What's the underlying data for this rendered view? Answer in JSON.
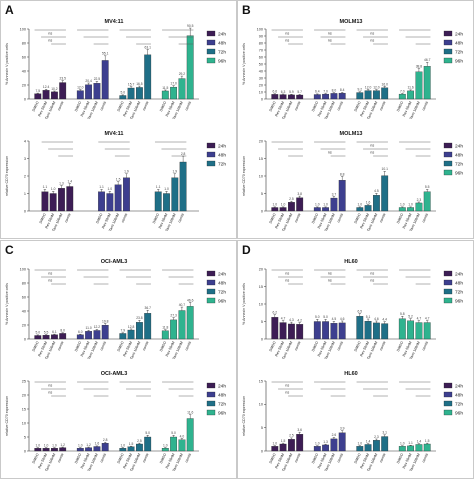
{
  "colors": {
    "h24": "#3d1d55",
    "h48": "#3d3f8f",
    "h72": "#1f6f87",
    "h96": "#2fb38f",
    "line": "#555555"
  },
  "groups": [
    "DMSO",
    "Rev 50nM",
    "Tami 100nM",
    "combi"
  ],
  "panels": [
    {
      "letter": "A",
      "dims": [
        0,
        0,
        237,
        239
      ]
    },
    {
      "letter": "B",
      "dims": [
        237,
        0,
        237,
        239
      ]
    },
    {
      "letter": "C",
      "dims": [
        0,
        239,
        237,
        240
      ]
    },
    {
      "letter": "D",
      "dims": [
        237,
        239,
        237,
        240
      ]
    }
  ],
  "chart_data": [
    {
      "panel": "A",
      "type": "bar",
      "title": "MV4:11",
      "ylabel": "% Annexin V positive cells",
      "ylim": [
        0,
        100
      ],
      "yticks": [
        0,
        20,
        40,
        60,
        80,
        100
      ],
      "categories": [
        "DMSO",
        "Rev 50nM",
        "Tami 100nM",
        "combi"
      ],
      "series": [
        {
          "name": "24h",
          "values": [
            7.5,
            12.4,
            10.2,
            23.5
          ],
          "labels": [
            "7.5",
            "12.4",
            "10.2",
            "23.5"
          ]
        },
        {
          "name": "48h",
          "values": [
            12.0,
            20.4,
            22.5,
            55.1
          ],
          "labels": [
            "12.0",
            "20.4",
            "22.5",
            "55.1"
          ]
        },
        {
          "name": "72h",
          "values": [
            5.0,
            15.7,
            16.5,
            63.1
          ],
          "labels": [
            "5.0",
            "15.7",
            "16.5",
            "63.1"
          ]
        },
        {
          "name": "96h",
          "values": [
            11.5,
            17.0,
            29.2,
            90.5
          ],
          "labels": [
            "11.5",
            "17.0",
            "29.2",
            "90.5"
          ]
        }
      ],
      "sig": [
        "ns",
        "ns",
        "",
        "",
        "",
        ""
      ]
    },
    {
      "panel": "B",
      "type": "bar",
      "title": "MOLM13",
      "ylabel": "% Annexin V positive cells",
      "ylim": [
        0,
        100
      ],
      "yticks": [
        0,
        10,
        20,
        30,
        40,
        50,
        60,
        70,
        80,
        90,
        100
      ],
      "categories": [
        "DMSO",
        "Rev 50nM",
        "Tami 100nM",
        "combi"
      ],
      "series": [
        {
          "name": "24h",
          "values": [
            6.6,
            6.3,
            5.9,
            5.7
          ],
          "labels": [
            "6.6",
            "6.3",
            "5.9",
            "5.7"
          ]
        },
        {
          "name": "48h",
          "values": [
            6.4,
            7.0,
            8.0,
            8.4
          ],
          "labels": [
            "6.4",
            "7.0",
            "8.0",
            "8.4"
          ]
        },
        {
          "name": "72h",
          "values": [
            9.2,
            12.0,
            12.0,
            16.0
          ],
          "labels": [
            "9.2",
            "12.0",
            "12.0",
            "16.0"
          ]
        },
        {
          "name": "96h",
          "values": [
            7.0,
            11.6,
            38.8,
            46.7
          ],
          "labels": [
            "7.0",
            "11.6",
            "38.8",
            "46.7"
          ]
        }
      ],
      "sig": [
        "ns",
        "ns",
        "ns",
        "ns",
        "ns",
        "ns"
      ]
    },
    {
      "panel": "A",
      "type": "bar",
      "title": "MV4:11",
      "ylabel": "relative CD70 expression",
      "ylim": [
        0,
        4
      ],
      "yticks": [
        0,
        1,
        2,
        3,
        4
      ],
      "categories": [
        "DMSO",
        "Rev 50nM",
        "Tami 100nM",
        "combi"
      ],
      "series": [
        {
          "name": "24h",
          "values": [
            1.1,
            1.0,
            1.3,
            1.4
          ],
          "labels": [
            "1.1",
            "1.0",
            "1.3",
            "1.4"
          ]
        },
        {
          "name": "48h",
          "values": [
            1.1,
            1.0,
            1.5,
            1.9
          ],
          "labels": [
            "1.1",
            "1.0",
            "1.5",
            "1.9"
          ]
        },
        {
          "name": "72h",
          "values": [
            1.1,
            1.0,
            1.9,
            2.8
          ],
          "labels": [
            "1.1",
            "1.0",
            "1.9",
            "2.8"
          ]
        }
      ],
      "sig": [
        "",
        "",
        "",
        ""
      ]
    },
    {
      "panel": "B",
      "type": "bar",
      "title": "MOLM13",
      "ylabel": "relative CD70 expression",
      "ylim": [
        0,
        20
      ],
      "yticks": [
        0,
        5,
        10,
        15,
        20
      ],
      "categories": [
        "DMSO",
        "Rev 50nM",
        "Tami 100nM",
        "combi"
      ],
      "series": [
        {
          "name": "24h",
          "values": [
            1.0,
            1.0,
            2.5,
            3.8
          ],
          "labels": [
            "1.0",
            "1.0",
            "2.5",
            "3.8"
          ]
        },
        {
          "name": "48h",
          "values": [
            1.0,
            1.0,
            3.7,
            8.8
          ],
          "labels": [
            "1.0",
            "1.0",
            "3.7",
            "8.8"
          ]
        },
        {
          "name": "72h",
          "values": [
            1.0,
            1.6,
            4.5,
            10.1
          ],
          "labels": [
            "1.0",
            "1.6",
            "4.5",
            "10.1"
          ]
        },
        {
          "name": "96h",
          "values": [
            1.0,
            1.0,
            2.3,
            5.5
          ],
          "labels": [
            "1.0",
            "1.0",
            "2.3",
            "5.5"
          ]
        }
      ],
      "sig": [
        "",
        "",
        "",
        "ns",
        "ns",
        "ns"
      ]
    },
    {
      "panel": "C",
      "type": "bar",
      "title": "OCI-AML3",
      "ylabel": "% Annexin V positive cells",
      "ylim": [
        0,
        100
      ],
      "yticks": [
        0,
        20,
        40,
        60,
        80,
        100
      ],
      "categories": [
        "DMSO",
        "Rev 50nM",
        "Tami 100nM",
        "combi"
      ],
      "series": [
        {
          "name": "24h",
          "values": [
            5.0,
            5.5,
            6.1,
            8.0
          ],
          "labels": [
            "5.0",
            "5.5",
            "6.1",
            "8.0"
          ]
        },
        {
          "name": "48h",
          "values": [
            6.0,
            11.0,
            12.2,
            19.8
          ],
          "labels": [
            "6.0",
            "11.0",
            "12.2",
            "19.8"
          ]
        },
        {
          "name": "72h",
          "values": [
            7.9,
            12.8,
            23.8,
            36.7
          ],
          "labels": [
            "7.9",
            "12.8",
            "23.8",
            "36.7"
          ]
        },
        {
          "name": "96h",
          "values": [
            11.8,
            27.3,
            40.7,
            46.6
          ],
          "labels": [
            "11.8",
            "27.3",
            "40.7",
            "46.6"
          ]
        }
      ],
      "sig": [
        "ns",
        "ns",
        "",
        "",
        "",
        ""
      ]
    },
    {
      "panel": "D",
      "type": "bar",
      "title": "HL60",
      "ylabel": "% Annexin V positive cells",
      "ylim": [
        0,
        20
      ],
      "yticks": [
        0,
        5,
        10,
        15,
        20
      ],
      "categories": [
        "DMSO",
        "Rev 50nM",
        "Tami 100nM",
        "combi"
      ],
      "series": [
        {
          "name": "24h",
          "values": [
            6.2,
            4.7,
            4.3,
            4.2
          ],
          "labels": [
            "6.2",
            "4.7",
            "4.3",
            "4.2"
          ]
        },
        {
          "name": "48h",
          "values": [
            5.0,
            5.0,
            4.5,
            4.6
          ],
          "labels": [
            "5.0",
            "5.0",
            "4.5",
            "4.6"
          ]
        },
        {
          "name": "72h",
          "values": [
            6.5,
            5.1,
            4.6,
            4.4
          ],
          "labels": [
            "6.5",
            "5.1",
            "4.6",
            "4.4"
          ]
        },
        {
          "name": "96h",
          "values": [
            5.8,
            5.2,
            4.7,
            4.7
          ],
          "labels": [
            "5.8",
            "5.2",
            "4.7",
            "4.7"
          ]
        }
      ],
      "sig": [
        "ns",
        "ns",
        "ns",
        "ns",
        "ns",
        "ns"
      ]
    },
    {
      "panel": "C",
      "type": "bar",
      "title": "OCI-AML3",
      "ylabel": "relative CD70 expression",
      "ylim": [
        0,
        25
      ],
      "yticks": [
        0,
        5,
        10,
        15,
        20,
        25
      ],
      "categories": [
        "DMSO",
        "Rev 50nM",
        "Tami 100nM",
        "combi"
      ],
      "series": [
        {
          "name": "24h",
          "values": [
            1.0,
            1.0,
            1.0,
            1.2
          ],
          "labels": [
            "1.0",
            "1.0",
            "1.0",
            "1.2"
          ]
        },
        {
          "name": "48h",
          "values": [
            1.0,
            1.2,
            1.6,
            2.8
          ],
          "labels": [
            "1.0",
            "1.2",
            "1.6",
            "2.8"
          ]
        },
        {
          "name": "72h",
          "values": [
            1.0,
            1.5,
            2.5,
            5.0
          ],
          "labels": [
            "1.0",
            "1.5",
            "2.5",
            "5.0"
          ]
        },
        {
          "name": "96h",
          "values": [
            1.0,
            5.0,
            4.0,
            11.6
          ],
          "labels": [
            "1.0",
            "5.0",
            "4.0",
            "11.6"
          ]
        }
      ],
      "sig": [
        "ns",
        "ns",
        "",
        "",
        "",
        ""
      ]
    },
    {
      "panel": "D",
      "type": "bar",
      "title": "HL60",
      "ylabel": "relative CD70 expression",
      "ylim": [
        0,
        15
      ],
      "yticks": [
        0,
        5,
        10,
        15
      ],
      "categories": [
        "DMSO",
        "Rev 50nM",
        "Tami 100nM",
        "combi"
      ],
      "series": [
        {
          "name": "24h",
          "values": [
            1.0,
            1.5,
            2.5,
            3.6
          ],
          "labels": [
            "1.0",
            "1.5",
            "2.5",
            "3.6"
          ]
        },
        {
          "name": "48h",
          "values": [
            1.0,
            1.3,
            2.6,
            3.9
          ],
          "labels": [
            "1.0",
            "1.3",
            "2.6",
            "3.9"
          ]
        },
        {
          "name": "72h",
          "values": [
            1.0,
            1.4,
            2.3,
            3.1
          ],
          "labels": [
            "1.0",
            "1.4",
            "2.3",
            "3.1"
          ]
        },
        {
          "name": "96h",
          "values": [
            1.0,
            1.1,
            1.4,
            1.5
          ],
          "labels": [
            "1.0",
            "1.1",
            "1.4",
            "1.5"
          ]
        }
      ],
      "sig": [
        "ns",
        "ns",
        "",
        "",
        "",
        ""
      ]
    }
  ]
}
